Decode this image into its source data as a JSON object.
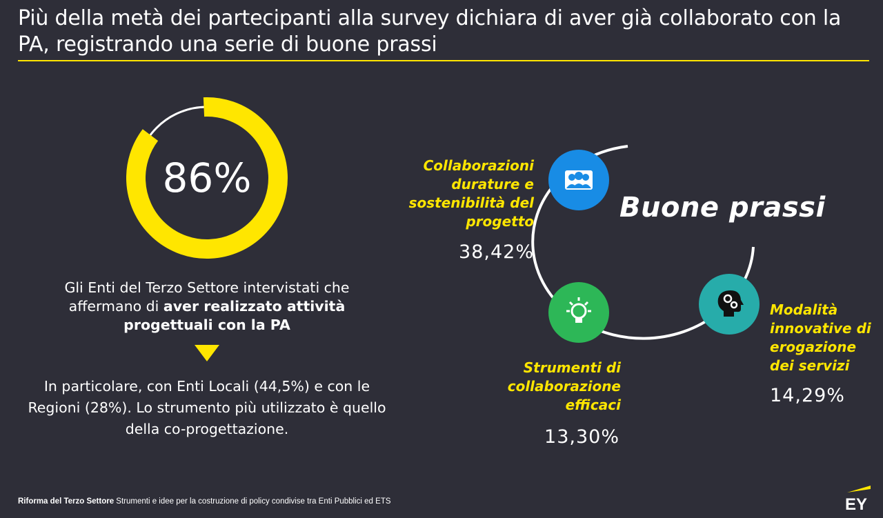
{
  "header": {
    "title": "Più della metà dei partecipanti alla survey dichiara di aver già collaborato con la PA, registrando una serie di buone prassi"
  },
  "stat": {
    "percent_value": 86,
    "percent_label": "86%",
    "description_part1": "Gli Enti del Terzo Settore intervistati che affermano di ",
    "description_bold": "aver realizzato attività progettuali con la PA",
    "detail": "In particolare, con Enti Locali (44,5%) e con le Regioni (28%). Lo strumento più utilizzato è quello della co-progettazione."
  },
  "practices": {
    "label": "Buone prassi",
    "items": [
      {
        "label": "Collaborazioni durature e sostenibilità del progetto",
        "value": "38,42%",
        "icon": "group-icon",
        "color": "#188ce5"
      },
      {
        "label": "Strumenti di collaborazione efficaci",
        "value": "13,30%",
        "icon": "lightbulb-icon",
        "color": "#2db757"
      },
      {
        "label": "Modalità innovative di erogazione dei servizi",
        "value": "14,29%",
        "icon": "head-gears-icon",
        "color": "#27acaa"
      }
    ]
  },
  "footer": {
    "source_bold": "Riforma del Terzo Settore",
    "source_rest": " Strumenti e idee per la costruzione di policy condivise tra Enti Pubblici ed ETS",
    "logo_text": "EY"
  },
  "colors": {
    "background": "#2e2e38",
    "accent": "#ffe600"
  }
}
